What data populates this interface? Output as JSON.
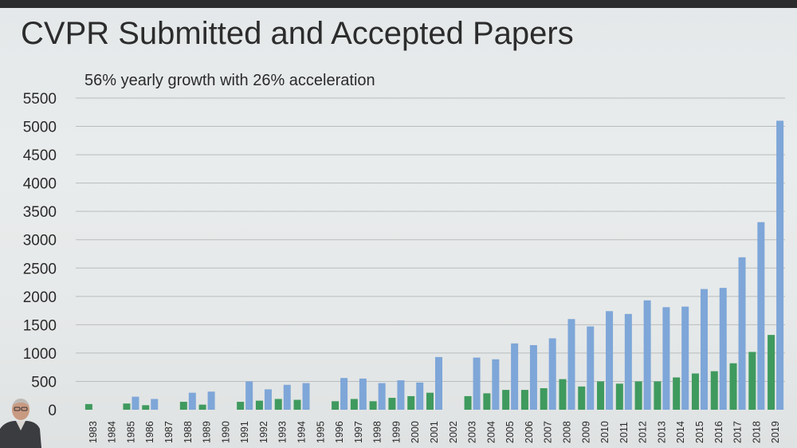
{
  "title": "CVPR Submitted and Accepted Papers",
  "subtitle": "56% yearly growth with 26% acceleration",
  "colors": {
    "submitted": "#7ea6d8",
    "accepted": "#3f9a5e",
    "grid": "#b9bcbd"
  },
  "chart_data": {
    "type": "bar",
    "title": "CVPR Submitted and Accepted Papers",
    "annotation": "56% yearly growth with 26% acceleration",
    "xlabel": "",
    "ylabel": "",
    "ylim": [
      0,
      5500
    ],
    "yticks": [
      "5500",
      "5000",
      "4500",
      "4000",
      "3500",
      "3000",
      "2500",
      "2000",
      "1500",
      "1000",
      "500",
      "0"
    ],
    "grid": true,
    "legend": "none",
    "categories": [
      "1983",
      "1984",
      "1985",
      "1986",
      "1987",
      "1988",
      "1989",
      "1990",
      "1991",
      "1992",
      "1993",
      "1994",
      "1995",
      "1996",
      "1997",
      "1998",
      "1999",
      "2000",
      "2001",
      "2002",
      "2003",
      "2004",
      "2005",
      "2006",
      "2007",
      "2008",
      "2009",
      "2010",
      "2011",
      "2012",
      "2013",
      "2014",
      "2015",
      "2016",
      "2017",
      "2018",
      "2019"
    ],
    "series": [
      {
        "key": "accepted",
        "values": [
          100,
          0,
          110,
          80,
          0,
          140,
          90,
          0,
          140,
          160,
          190,
          175,
          0,
          150,
          190,
          150,
          210,
          240,
          300,
          0,
          240,
          290,
          350,
          350,
          380,
          540,
          410,
          500,
          460,
          500,
          500,
          570,
          640,
          680,
          820,
          1020,
          1320
        ]
      },
      {
        "key": "submitted",
        "values": [
          0,
          0,
          230,
          190,
          0,
          300,
          320,
          0,
          500,
          360,
          440,
          470,
          0,
          560,
          550,
          470,
          520,
          480,
          930,
          0,
          920,
          890,
          1170,
          1140,
          1260,
          1600,
          1470,
          1740,
          1690,
          1930,
          1810,
          1820,
          2130,
          2150,
          2690,
          3310,
          5100
        ]
      }
    ]
  }
}
